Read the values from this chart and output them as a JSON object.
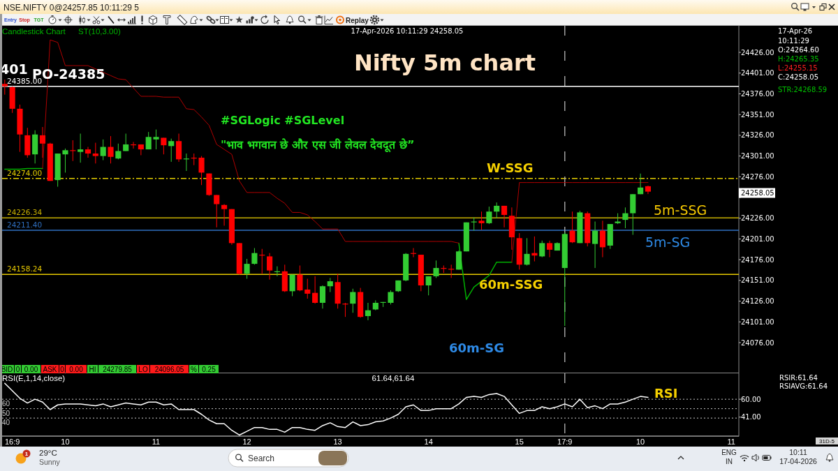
{
  "chart_data": [
    {
      "type": "candlestick",
      "title": "Nifty 5m chart",
      "categories": [
        null,
        "16:9",
        null,
        null,
        null,
        null,
        null,
        null,
        "10",
        null,
        null,
        null,
        null,
        null,
        null,
        null,
        null,
        null,
        null,
        null,
        "11",
        null,
        null,
        null,
        null,
        null,
        null,
        null,
        null,
        null,
        null,
        null,
        "12",
        null,
        null,
        null,
        null,
        null,
        null,
        null,
        null,
        null,
        null,
        null,
        "13",
        null,
        null,
        null,
        null,
        null,
        null,
        null,
        null,
        null,
        null,
        null,
        "14",
        null,
        null,
        null,
        null,
        null,
        null,
        null,
        null,
        null,
        null,
        null,
        "15",
        null,
        null,
        null,
        null,
        null,
        "17:9",
        null,
        null,
        null,
        null,
        null,
        null,
        null,
        null,
        null,
        "10",
        null,
        null,
        null,
        null,
        null,
        null,
        null,
        null,
        null,
        null,
        null,
        "11"
      ],
      "ohlc": [
        [
          24388,
          24393,
          24375,
          24385
        ],
        [
          24384,
          24385,
          24353,
          24358
        ],
        [
          24358,
          24363,
          24306,
          24327
        ],
        [
          24326,
          24335,
          24299,
          24302
        ],
        [
          24303,
          24332,
          24292,
          24327
        ],
        [
          24326,
          24336,
          24299,
          24316
        ],
        [
          24316,
          24317,
          24271,
          24271
        ],
        [
          24272,
          24304,
          24264,
          24304
        ],
        [
          24303,
          24310,
          24281,
          24308
        ],
        [
          24308,
          24320,
          24295,
          24307
        ],
        [
          24306,
          24328,
          24293,
          24309
        ],
        [
          24309,
          24312,
          24299,
          24304
        ],
        [
          24304,
          24317,
          24292,
          24301
        ],
        [
          24301,
          24321,
          24296,
          24312
        ],
        [
          24312,
          24325,
          24292,
          24300
        ],
        [
          24298,
          24316,
          24297,
          24307
        ],
        [
          24307,
          24328,
          24307,
          24315
        ],
        [
          24315,
          24318,
          24310,
          24314
        ],
        [
          24315,
          24315,
          24302,
          24309
        ],
        [
          24309,
          24330,
          24309,
          24324
        ],
        [
          24321,
          24333,
          24309,
          24324
        ],
        [
          24323,
          24323,
          24303,
          24314
        ],
        [
          24313,
          24322,
          24294,
          24319
        ],
        [
          24319,
          24328,
          24294,
          24297
        ],
        [
          24297,
          24304,
          24283,
          24298
        ],
        [
          24299,
          24304,
          24290,
          24298
        ],
        [
          24299,
          24301,
          24266,
          24281
        ],
        [
          24280,
          24280,
          24253,
          24254
        ],
        [
          24254,
          24254,
          24215,
          24243
        ],
        [
          24242,
          24243,
          24217,
          24237
        ],
        [
          24237,
          24237,
          24194,
          24196
        ],
        [
          24196,
          24196,
          24158,
          24159
        ],
        [
          24159,
          24177,
          24153,
          24171
        ],
        [
          24171,
          24190,
          24170,
          24184
        ],
        [
          24182,
          24189,
          24159,
          24181
        ],
        [
          24180,
          24184,
          24152,
          24163
        ],
        [
          24161,
          24168,
          24156,
          24162
        ],
        [
          24162,
          24170,
          24137,
          24138
        ],
        [
          24138,
          24158,
          24132,
          24158
        ],
        [
          24158,
          24169,
          24138,
          24139
        ],
        [
          24140,
          24153,
          24129,
          24135
        ],
        [
          24136,
          24156,
          24123,
          24124
        ],
        [
          24124,
          24145,
          24117,
          24144
        ],
        [
          24144,
          24154,
          24137,
          24150
        ],
        [
          24149,
          24159,
          24117,
          24123
        ],
        [
          24123,
          24124,
          24107,
          24122
        ],
        [
          24123,
          24141,
          24112,
          24137
        ],
        [
          24137,
          24142,
          24106,
          24107
        ],
        [
          24108,
          24124,
          24103,
          24115
        ],
        [
          24116,
          24127,
          24115,
          24124
        ],
        [
          24124,
          24125,
          24119,
          24125
        ],
        [
          24124,
          24139,
          24122,
          24137
        ],
        [
          24138,
          24151,
          24137,
          24151
        ],
        [
          24151,
          24184,
          24150,
          24183
        ],
        [
          24184,
          24190,
          24179,
          24183
        ],
        [
          24182,
          24182,
          24138,
          24145
        ],
        [
          24145,
          24156,
          24133,
          24156
        ],
        [
          24156,
          24175,
          24154,
          24166
        ],
        [
          24166,
          24169,
          24160,
          24165
        ],
        [
          24165,
          24170,
          24154,
          24164
        ],
        [
          24164,
          24187,
          24164,
          24186
        ],
        [
          24186,
          24221,
          24186,
          24221
        ],
        [
          24221,
          24227,
          24211,
          24222
        ],
        [
          24223,
          24234,
          24212,
          24220
        ],
        [
          24220,
          24240,
          24219,
          24234
        ],
        [
          24234,
          24245,
          24226,
          24241
        ],
        [
          24241,
          24241,
          24215,
          24230
        ],
        [
          24229,
          24239,
          24188,
          24203
        ],
        [
          24202,
          24208,
          24164,
          24170
        ],
        [
          24170,
          24202,
          24169,
          24183
        ],
        [
          24184,
          24204,
          24174,
          24181
        ],
        [
          24180,
          24199,
          24179,
          24196
        ],
        [
          24196,
          24199,
          24179,
          24188
        ],
        [
          24187,
          24197,
          24187,
          24196
        ],
        [
          24166,
          24209,
          24096.05,
          24207
        ],
        [
          24211,
          24234,
          24196,
          24197
        ],
        [
          24196,
          24235,
          24196,
          24233
        ],
        [
          24232,
          24234,
          24192,
          24196
        ],
        [
          24195,
          24222,
          24166,
          24211
        ],
        [
          24211,
          24223,
          24179,
          24191
        ],
        [
          24193,
          24219,
          24189,
          24219
        ],
        [
          24220,
          24232,
          24219,
          24222
        ],
        [
          24224,
          24239,
          24214,
          24232
        ],
        [
          24232,
          24255,
          24206,
          24255
        ],
        [
          24255,
          24279.85,
          24255,
          24263
        ],
        [
          24264.6,
          24265.35,
          24255.15,
          24258.05
        ],
        null,
        null,
        null,
        null,
        null,
        null,
        null,
        null,
        null,
        null,
        null
      ],
      "series": [
        {
          "type": "line",
          "name": "ST(10,3.00)",
          "color": "#00b000",
          "values": [
            24285,
            24285,
            24285,
            24286,
            24286,
            24286,
            null,
            null,
            null,
            null,
            null,
            null,
            null,
            null,
            null,
            null,
            null,
            null,
            null,
            null,
            null,
            null,
            null,
            null,
            null,
            null,
            null,
            null,
            null,
            null,
            null,
            null,
            null,
            null,
            null,
            null,
            null,
            null,
            null,
            null,
            null,
            null,
            null,
            null,
            null,
            null,
            null,
            null,
            null,
            null,
            null,
            null,
            null,
            null,
            null,
            null,
            null,
            null,
            null,
            null,
            24196,
            24128,
            24143,
            24150,
            24157,
            24173,
            24173,
            24173,
            null,
            null,
            null,
            null,
            null,
            null,
            null,
            null,
            null,
            null,
            null,
            null,
            null,
            null,
            null,
            null,
            null,
            null,
            null,
            null,
            null,
            null,
            null,
            null,
            null,
            null,
            null,
            null,
            null
          ]
        },
        {
          "type": "line",
          "color": "#b00000",
          "values": [
            null,
            null,
            null,
            null,
            null,
            24286,
            24441,
            24438,
            24410,
            24410,
            24410,
            24410,
            24406,
            24402,
            24398,
            24394,
            24393,
            24383,
            24373,
            24373,
            24373,
            24372,
            24372,
            24372,
            24358,
            24357,
            24348,
            24338,
            24315,
            24309,
            24303,
            24271,
            24257,
            24257,
            24257,
            24257,
            24250,
            24244,
            24233,
            24233,
            24230,
            24222,
            24213,
            24213,
            24213,
            24198,
            24198,
            24198,
            24198,
            24198,
            24198,
            24198,
            24198,
            24198,
            24198,
            24198,
            24198,
            24198,
            24198,
            24198,
            24196,
            null,
            null,
            null,
            null,
            null,
            null,
            24173,
            24269,
            24269,
            24269,
            24269,
            24269,
            24269,
            24269,
            24269,
            24269,
            24269,
            24269,
            24269,
            24269,
            24269,
            24269,
            24269,
            24269,
            24269,
            null,
            null,
            null,
            null,
            null,
            null,
            null,
            null,
            null,
            null,
            null
          ]
        }
      ],
      "ylim": [
        24039,
        24458
      ],
      "yticks": [
        {
          "value": 24076,
          "label": "24076.00"
        },
        {
          "value": 24101,
          "label": "24101.00"
        },
        {
          "value": 24126,
          "label": "24126.00"
        },
        {
          "value": 24151,
          "label": "24151.00"
        },
        {
          "value": 24176,
          "label": "24176.00"
        },
        {
          "value": 24201,
          "label": "24201.00"
        },
        {
          "value": 24226,
          "label": "24226.00"
        },
        {
          "value": 24251,
          "label": null
        },
        {
          "value": 24276,
          "label": "24276.00"
        },
        {
          "value": 24301,
          "label": "24301.00"
        },
        {
          "value": 24326,
          "label": "24326.00"
        },
        {
          "value": 24351,
          "label": "24351.00"
        },
        {
          "value": 24376,
          "label": "24376.00"
        },
        {
          "value": 24401,
          "label": "24401.00"
        },
        {
          "value": 24426,
          "label": "24426.00"
        }
      ],
      "tick_labels": "y",
      "ref_lines": [
        {
          "axis": "y",
          "value": 24385,
          "label": "24385.00",
          "color": "#ffffff"
        },
        {
          "axis": "y",
          "value": 24274,
          "label": "24274.00",
          "color": "#e6d000",
          "line_style": "dashed"
        },
        {
          "axis": "y",
          "value": 24226.34,
          "label": "24226.34",
          "color": "#c8b000"
        },
        {
          "axis": "y",
          "value": 24211.4,
          "label": "24211.40",
          "color": "#2f6fc0"
        },
        {
          "axis": "y",
          "value": 24158.24,
          "label": "24158.24",
          "color": "#e6c800"
        },
        {
          "axis": "x",
          "value": "17:9",
          "color": "#a0a0a0",
          "line_style": "dashed"
        }
      ],
      "annotations": [
        "Candlestick Chart",
        "17-Apr-2026 10:11:29 24258.05",
        "401",
        {
          "text": "PO-24385",
          "y": 24385
        },
        "#SGLogic #SGLevel",
        "\"भाव भगवान छे और एस जी लेवल देवदूत छे”",
        {
          "text": "W-SSG",
          "y": 24274
        },
        {
          "text": "5m-SSG",
          "y": 24226.34
        },
        {
          "text": "5m-SG",
          "y": 24211.4
        },
        {
          "text": "60m-SSG",
          "y": 24158.24
        },
        "60m-SG",
        "17-Apr-26",
        "10:11:29",
        "O:24264.60",
        "H:24265.35",
        "L:24255.15",
        "C:24258.05",
        "STR:24268.59",
        "24258.05",
        "BID",
        "0",
        "0.00",
        "ASK",
        "0",
        "0.00",
        "HI",
        "24279.85",
        "LO",
        "24096.05",
        "%",
        "0.25"
      ]
    },
    {
      "type": "line",
      "categories": [
        null,
        "16:9",
        null,
        null,
        null,
        null,
        null,
        null,
        "10",
        null,
        null,
        null,
        null,
        null,
        null,
        null,
        null,
        null,
        null,
        null,
        "11",
        null,
        null,
        null,
        null,
        null,
        null,
        null,
        null,
        null,
        null,
        null,
        "12",
        null,
        null,
        null,
        null,
        null,
        null,
        null,
        null,
        null,
        null,
        null,
        "13",
        null,
        null,
        null,
        null,
        null,
        null,
        null,
        null,
        null,
        null,
        null,
        "14",
        null,
        null,
        null,
        null,
        null,
        null,
        null,
        null,
        null,
        null,
        null,
        "15",
        null,
        null,
        null,
        null,
        null,
        "17:9",
        null,
        null,
        null,
        null,
        null,
        null,
        null,
        null,
        null,
        "10",
        null,
        null,
        null,
        null,
        null,
        null,
        null,
        null,
        null,
        null,
        null,
        "11"
      ],
      "series": [
        {
          "name": "RSI",
          "color": "#ffffff",
          "values": [
            77,
            69,
            61,
            56,
            60,
            57,
            49,
            54,
            55,
            55,
            55,
            54,
            53,
            55,
            52,
            54,
            56,
            55,
            54,
            57,
            57,
            54,
            55,
            49,
            49,
            49,
            44,
            38,
            34,
            34,
            27,
            22,
            26,
            30,
            30,
            28,
            28,
            25,
            30,
            30,
            28,
            27,
            32,
            35,
            31,
            30,
            36,
            32,
            33,
            36,
            37,
            40,
            44,
            52,
            54,
            48,
            48,
            50,
            50,
            50,
            55,
            62,
            63,
            62,
            65,
            66,
            63,
            54,
            45,
            48,
            48,
            52,
            50,
            52,
            55,
            52,
            60,
            51,
            53,
            50,
            55,
            55,
            57,
            60,
            63,
            62,
            null,
            null,
            null,
            null,
            null,
            null,
            null,
            null,
            null,
            null,
            null
          ]
        }
      ],
      "ylim": [
        20.5,
        87.5
      ],
      "yticks": [
        {
          "value": 60,
          "label": "60.00"
        },
        {
          "value": 41,
          "label": "41.00"
        }
      ],
      "ref_lines": [
        {
          "axis": "y",
          "value": 60,
          "label": "60",
          "color": "#c8c8c8",
          "line_style": "dotted"
        },
        {
          "axis": "y",
          "value": 50,
          "label": "50",
          "color": "#c8c8c8",
          "line_style": "dotted"
        },
        {
          "axis": "y",
          "value": 40,
          "label": "40",
          "color": "#c8c8c8",
          "line_style": "dotted"
        },
        {
          "axis": "x",
          "value": "17:9",
          "color": "#a0a0a0",
          "line_style": "dashed"
        }
      ],
      "annotations": [
        "RSI(E,1,14,close)",
        "61.64,61.64",
        "RSIR:61.64",
        "RSIAVG:61.64"
      ]
    },
    {
      "type": "other",
      "annotations": [
        "NSE.NIFTY 0@24257.85 10:11:29 5",
        "Replay",
        "1",
        "29°C",
        "Sunny",
        "Search",
        "ENG",
        "IN",
        "10:11",
        "17-04-2026",
        "31D-5",
        "Entry",
        "Stop",
        "TGT"
      ]
    }
  ]
}
